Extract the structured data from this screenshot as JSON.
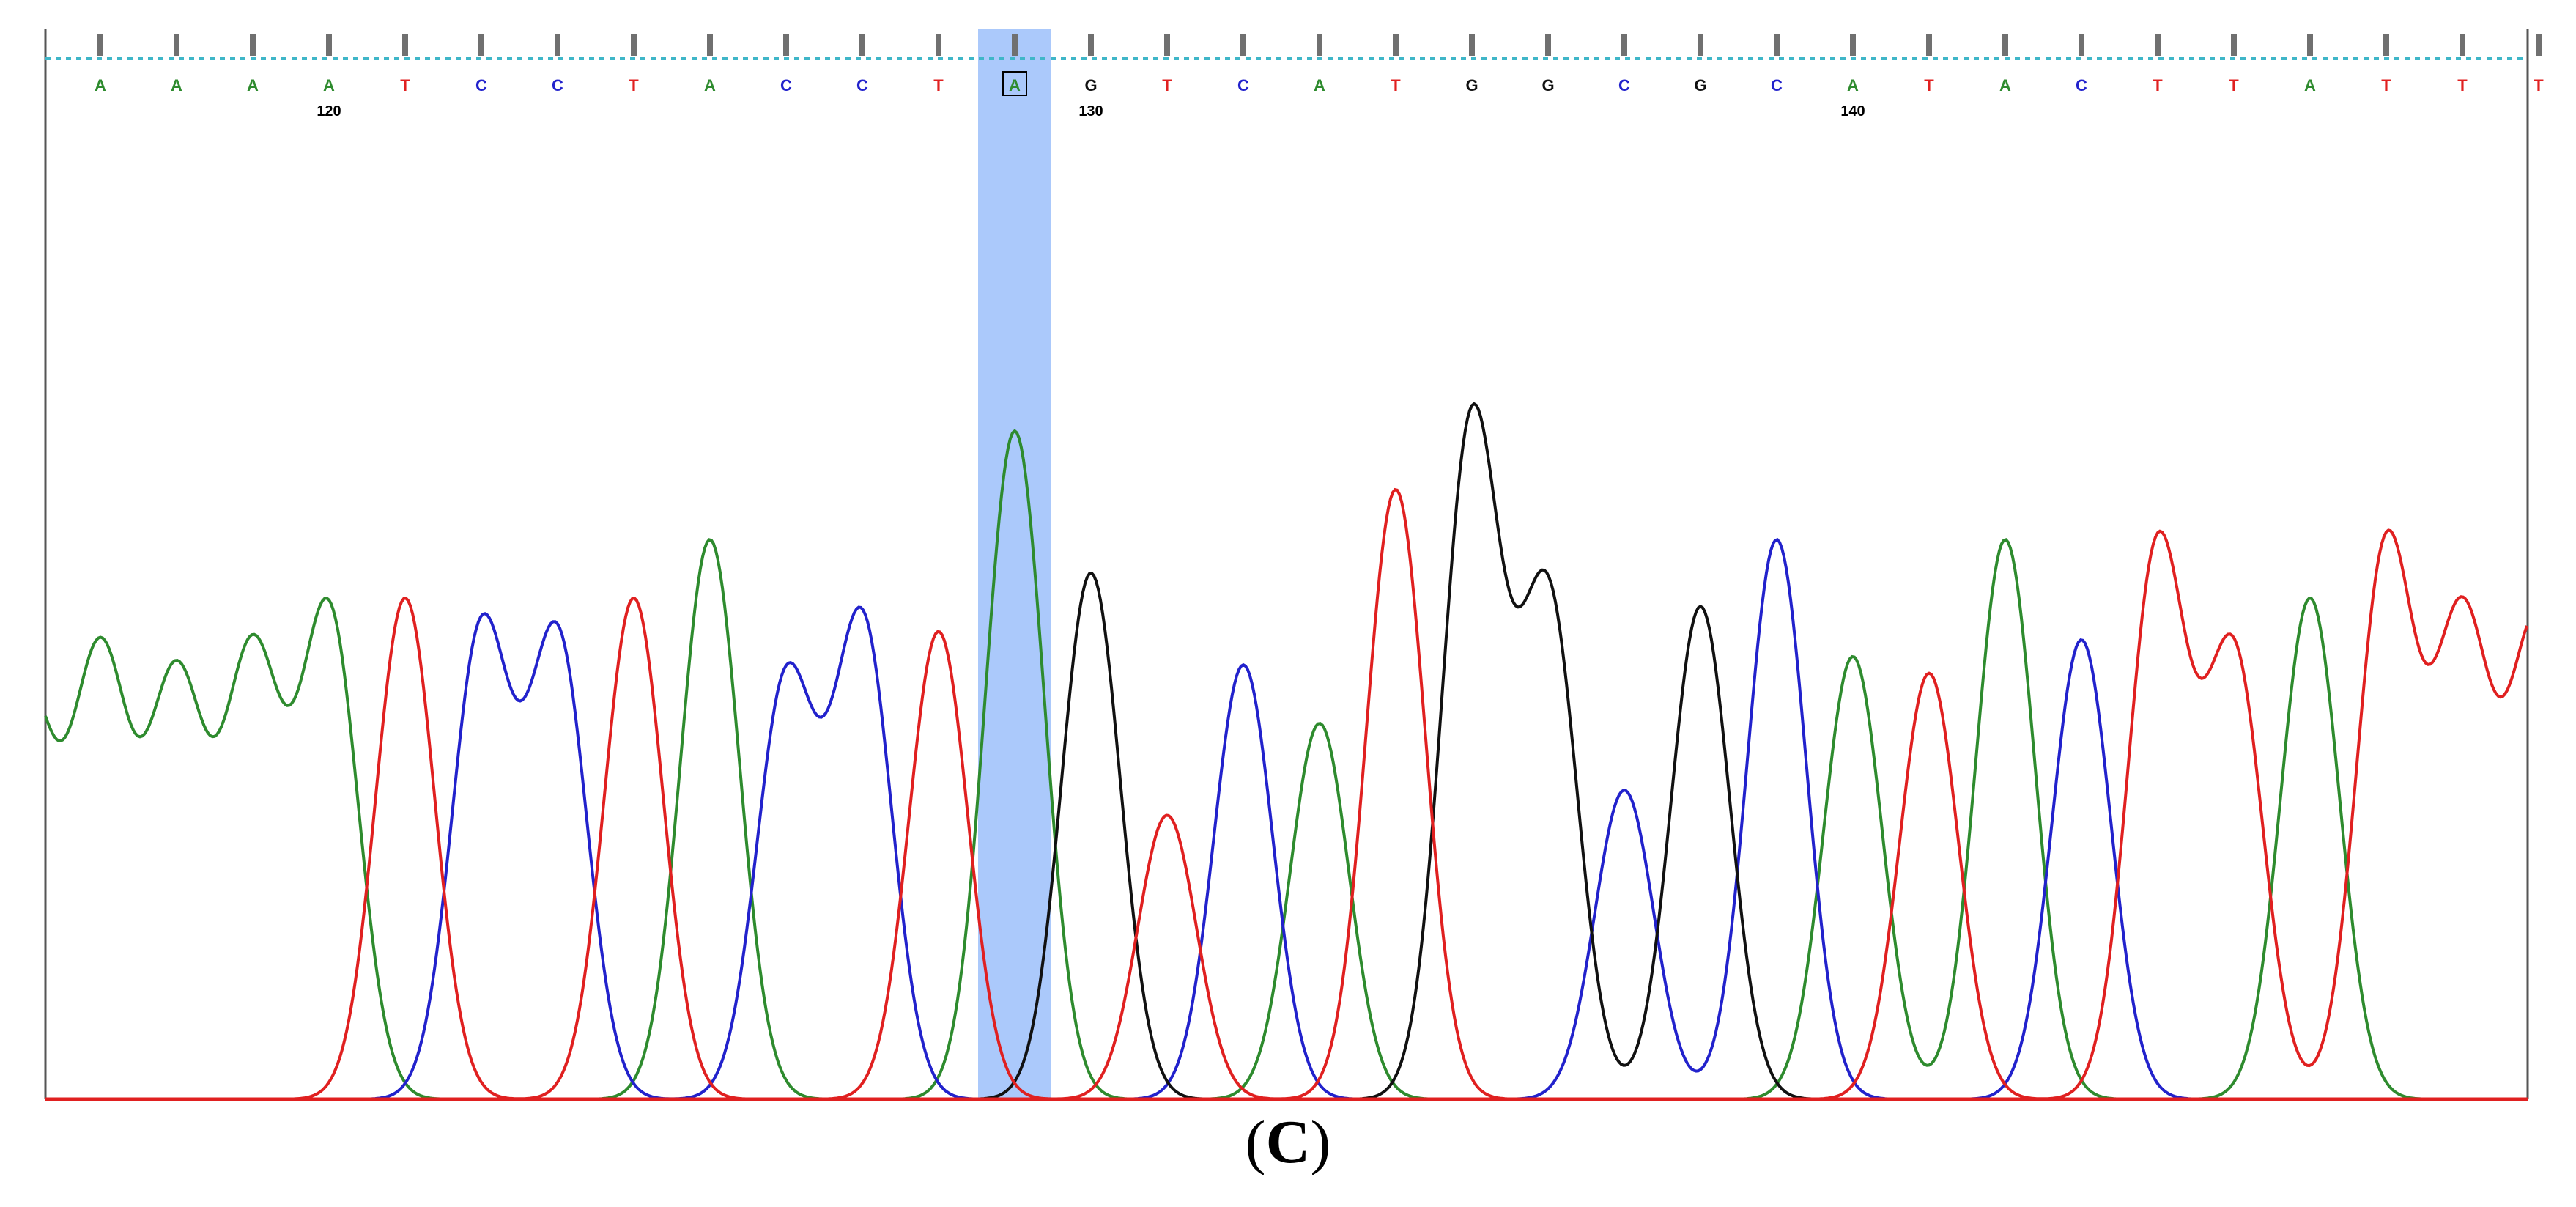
{
  "chart_data": {
    "type": "line",
    "title": "",
    "xlabel": "",
    "ylabel": "",
    "sequence": [
      "A",
      "A",
      "A",
      "A",
      "T",
      "C",
      "C",
      "T",
      "A",
      "C",
      "C",
      "T",
      "A",
      "G",
      "T",
      "C",
      "A",
      "T",
      "G",
      "G",
      "C",
      "G",
      "C",
      "A",
      "T",
      "A",
      "C",
      "T",
      "T",
      "A",
      "T",
      "T",
      "T"
    ],
    "position_labels": [
      {
        "index": 3,
        "label": "120"
      },
      {
        "index": 13,
        "label": "130"
      },
      {
        "index": 23,
        "label": "140"
      }
    ],
    "selected_index": 12,
    "peak_heights": [
      0.52,
      0.49,
      0.52,
      0.58,
      0.6,
      0.56,
      0.55,
      0.6,
      0.67,
      0.5,
      0.57,
      0.56,
      0.8,
      0.63,
      0.34,
      0.52,
      0.45,
      0.73,
      0.81,
      0.6,
      0.37,
      0.59,
      0.67,
      0.53,
      0.51,
      0.67,
      0.55,
      0.66,
      0.53,
      0.6,
      0.66,
      0.56,
      0.56
    ],
    "y_range": [
      0,
      1
    ],
    "series": [
      {
        "base": "A",
        "color": "#2e8b2e"
      },
      {
        "base": "C",
        "color": "#2222cc"
      },
      {
        "base": "G",
        "color": "#111111"
      },
      {
        "base": "T",
        "color": "#e02020"
      }
    ],
    "selection_color": "#9cc0fa",
    "baseline_color": "#e02020"
  },
  "caption": {
    "open": "(",
    "letter": "C",
    "close": ")"
  }
}
